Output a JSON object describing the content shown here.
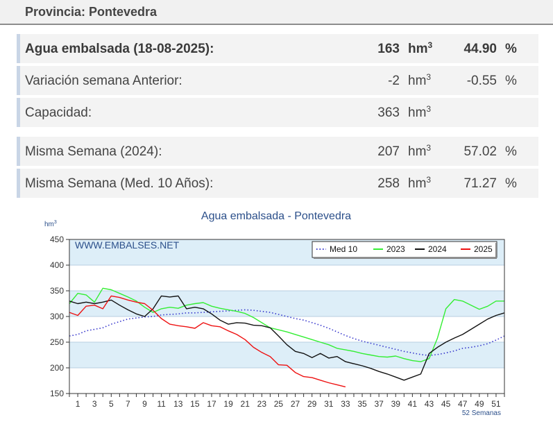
{
  "province": {
    "title": "Provincia: Pontevedra"
  },
  "stats": [
    {
      "label": "Agua embalsada (18-08-2025):",
      "value": "163",
      "unit": "hm",
      "unit_sup": "3",
      "percent": "44.90",
      "percent_sym": "%",
      "bold": true
    },
    {
      "label": "Variación semana Anterior:",
      "value": "-2",
      "unit": "hm",
      "unit_sup": "3",
      "percent": "-0.55",
      "percent_sym": "%",
      "bold": false
    },
    {
      "label": "Capacidad:",
      "value": "363",
      "unit": "hm",
      "unit_sup": "3",
      "percent": "",
      "percent_sym": "",
      "bold": false
    },
    {
      "label": "Misma Semana (2024):",
      "value": "207",
      "unit": "hm",
      "unit_sup": "3",
      "percent": "57.02",
      "percent_sym": "%",
      "bold": false
    },
    {
      "label": "Misma Semana (Med. 10 Años):",
      "value": "258",
      "unit": "hm",
      "unit_sup": "3",
      "percent": "71.27",
      "percent_sym": "%",
      "bold": false
    }
  ],
  "chart_data": {
    "type": "line",
    "title": "Agua embalsada - Pontevedra",
    "ylabel": "hm",
    "ylabel_sup": "3",
    "xlabel": "52 Semanas",
    "watermark": "WWW.EMBALSES.NET",
    "ylim": [
      150,
      450
    ],
    "xlim": [
      0,
      52
    ],
    "yticks": [
      150,
      200,
      250,
      300,
      350,
      400,
      450
    ],
    "xticks": [
      1,
      3,
      5,
      7,
      9,
      11,
      13,
      15,
      17,
      19,
      21,
      23,
      25,
      27,
      29,
      31,
      33,
      35,
      37,
      39,
      41,
      43,
      45,
      47,
      49,
      51
    ],
    "legend_position": "top-right",
    "colors": {
      "band": "#ddeef8",
      "plot_bg": "#ffffff"
    },
    "series": [
      {
        "name": "Med 10",
        "color": "#3333cc",
        "style": "dotted",
        "x": [
          0,
          1,
          2,
          3,
          4,
          5,
          6,
          7,
          8,
          9,
          10,
          11,
          12,
          13,
          14,
          15,
          16,
          17,
          18,
          19,
          20,
          21,
          22,
          23,
          24,
          25,
          26,
          27,
          28,
          29,
          30,
          31,
          32,
          33,
          34,
          35,
          36,
          37,
          38,
          39,
          40,
          41,
          42,
          43,
          44,
          45,
          46,
          47,
          48,
          49,
          50,
          51,
          52
        ],
        "values": [
          262,
          265,
          272,
          275,
          278,
          285,
          290,
          295,
          297,
          299,
          300,
          303,
          304,
          305,
          307,
          307,
          308,
          309,
          310,
          311,
          312,
          313,
          312,
          310,
          308,
          304,
          300,
          296,
          293,
          288,
          283,
          277,
          270,
          263,
          257,
          252,
          248,
          244,
          240,
          236,
          232,
          229,
          226,
          224,
          226,
          229,
          233,
          238,
          240,
          243,
          247,
          254,
          262
        ]
      },
      {
        "name": "2023",
        "color": "#33ee33",
        "style": "solid",
        "x": [
          0,
          1,
          2,
          3,
          4,
          5,
          6,
          7,
          8,
          9,
          10,
          11,
          12,
          13,
          14,
          15,
          16,
          17,
          18,
          19,
          20,
          21,
          22,
          23,
          24,
          25,
          26,
          27,
          28,
          29,
          30,
          31,
          32,
          33,
          34,
          35,
          36,
          37,
          38,
          39,
          40,
          41,
          42,
          43,
          44,
          45,
          46,
          47,
          48,
          49,
          50,
          51,
          52
        ],
        "values": [
          325,
          345,
          342,
          328,
          355,
          352,
          345,
          338,
          330,
          318,
          308,
          315,
          318,
          316,
          322,
          325,
          327,
          320,
          316,
          313,
          310,
          306,
          298,
          288,
          278,
          274,
          270,
          265,
          260,
          255,
          250,
          245,
          238,
          235,
          232,
          228,
          225,
          222,
          221,
          223,
          218,
          214,
          212,
          218,
          258,
          315,
          333,
          330,
          322,
          314,
          320,
          330,
          330
        ]
      },
      {
        "name": "2024",
        "color": "#111111",
        "style": "solid",
        "x": [
          0,
          1,
          2,
          3,
          4,
          5,
          6,
          7,
          8,
          9,
          10,
          11,
          12,
          13,
          14,
          15,
          16,
          17,
          18,
          19,
          20,
          21,
          22,
          23,
          24,
          25,
          26,
          27,
          28,
          29,
          30,
          31,
          32,
          33,
          34,
          35,
          36,
          37,
          38,
          39,
          40,
          41,
          42,
          43,
          44,
          45,
          46,
          47,
          48,
          49,
          50,
          51,
          52
        ],
        "values": [
          330,
          325,
          328,
          325,
          328,
          332,
          322,
          313,
          305,
          300,
          315,
          340,
          338,
          340,
          315,
          318,
          315,
          305,
          293,
          285,
          288,
          287,
          283,
          282,
          278,
          262,
          245,
          232,
          228,
          220,
          228,
          219,
          222,
          212,
          208,
          204,
          199,
          193,
          188,
          182,
          176,
          182,
          188,
          228,
          240,
          250,
          258,
          265,
          275,
          285,
          295,
          302,
          307
        ]
      },
      {
        "name": "2025",
        "color": "#ee1111",
        "style": "solid",
        "x": [
          0,
          1,
          2,
          3,
          4,
          5,
          6,
          7,
          8,
          9,
          10,
          11,
          12,
          13,
          14,
          15,
          16,
          17,
          18,
          19,
          20,
          21,
          22,
          23,
          24,
          25,
          26,
          27,
          28,
          29,
          30,
          31,
          32,
          33
        ],
        "values": [
          308,
          302,
          320,
          322,
          315,
          340,
          337,
          332,
          328,
          325,
          312,
          296,
          285,
          282,
          280,
          277,
          288,
          282,
          280,
          272,
          265,
          255,
          240,
          230,
          222,
          206,
          205,
          191,
          183,
          181,
          176,
          171,
          167,
          163
        ]
      }
    ]
  }
}
